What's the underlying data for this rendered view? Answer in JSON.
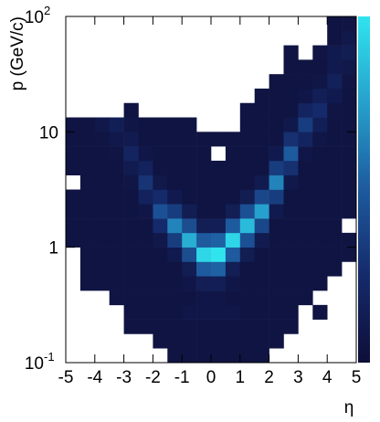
{
  "chart_data": {
    "type": "heatmap",
    "x_label": "η",
    "y_label": "p (GeV/c)",
    "log_y": true,
    "xlim": [
      -5,
      5
    ],
    "ylim": [
      0.1,
      100
    ],
    "xticks": [
      -5,
      -4,
      -3,
      -2,
      -1,
      0,
      1,
      2,
      3,
      4,
      5
    ],
    "yticks": [
      {
        "value": 0.1,
        "label": "10",
        "exponent": "-1"
      },
      1,
      10,
      {
        "value": 100,
        "label": "10",
        "exponent": "2"
      }
    ],
    "xbins": [
      -5,
      -4.5,
      -4,
      -3.5,
      -3,
      -2.5,
      -2,
      -1.5,
      -1,
      -0.5,
      0,
      0.5,
      1,
      1.5,
      2,
      2.5,
      3,
      3.5,
      4,
      4.5,
      5
    ],
    "ybins": [
      0.1,
      0.1334,
      0.1778,
      0.2371,
      0.3162,
      0.4217,
      0.5623,
      0.7499,
      1,
      1.334,
      1.778,
      2.371,
      3.162,
      4.217,
      5.623,
      7.499,
      10,
      13.34,
      17.78,
      23.71,
      31.62,
      42.17,
      56.23,
      74.99,
      100
    ],
    "zlim": [
      0,
      100
    ],
    "colors": [
      "#0e0e38",
      "#152a6a",
      "#1d5a9e",
      "#26a0cc",
      "#30e4ee"
    ],
    "z": [
      [
        null,
        null,
        null,
        null,
        null,
        null,
        null,
        5,
        5,
        5,
        5,
        5,
        5,
        5,
        null,
        null,
        null,
        null,
        null,
        null
      ],
      [
        null,
        null,
        null,
        null,
        null,
        null,
        5,
        5,
        5,
        5,
        5,
        5,
        5,
        5,
        5,
        null,
        null,
        null,
        null,
        null
      ],
      [
        null,
        null,
        null,
        null,
        5,
        5,
        5,
        5,
        5,
        5,
        5,
        5,
        5,
        5,
        5,
        5,
        null,
        null,
        null,
        null
      ],
      [
        null,
        null,
        null,
        null,
        5,
        5,
        5,
        5,
        8,
        8,
        8,
        8,
        5,
        5,
        5,
        5,
        null,
        5,
        null,
        null
      ],
      [
        null,
        null,
        null,
        5,
        5,
        5,
        5,
        5,
        5,
        8,
        8,
        5,
        5,
        5,
        5,
        5,
        5,
        null,
        null,
        null
      ],
      [
        null,
        5,
        5,
        5,
        5,
        5,
        5,
        5,
        8,
        14,
        15,
        8,
        5,
        5,
        5,
        5,
        5,
        5,
        null,
        null
      ],
      [
        null,
        5,
        5,
        5,
        5,
        5,
        5,
        5,
        13,
        50,
        53,
        14,
        5,
        5,
        5,
        5,
        5,
        5,
        5,
        null
      ],
      [
        null,
        5,
        5,
        5,
        5,
        5,
        5,
        11,
        43,
        95,
        100,
        50,
        13,
        5,
        5,
        5,
        5,
        5,
        5,
        5
      ],
      [
        5,
        5,
        5,
        5,
        5,
        5,
        9,
        35,
        80,
        50,
        53,
        95,
        45,
        12,
        5,
        5,
        5,
        5,
        5,
        5
      ],
      [
        5,
        5,
        5,
        5,
        5,
        5,
        25,
        65,
        43,
        14,
        15,
        50,
        85,
        40,
        5,
        5,
        5,
        5,
        5,
        null
      ],
      [
        5,
        5,
        5,
        5,
        5,
        8,
        45,
        35,
        13,
        5,
        5,
        14,
        45,
        75,
        11,
        5,
        5,
        5,
        5,
        5
      ],
      [
        5,
        5,
        5,
        5,
        5,
        18,
        25,
        11,
        5,
        5,
        5,
        5,
        13,
        40,
        35,
        5,
        5,
        5,
        5,
        5
      ],
      [
        null,
        5,
        5,
        5,
        7,
        30,
        9,
        5,
        5,
        5,
        5,
        5,
        5,
        12,
        65,
        10,
        5,
        5,
        5,
        5
      ],
      [
        5,
        5,
        5,
        5,
        12,
        18,
        5,
        5,
        5,
        5,
        5,
        5,
        5,
        5,
        35,
        28,
        5,
        5,
        5,
        5
      ],
      [
        5,
        5,
        5,
        6,
        20,
        8,
        5,
        5,
        5,
        5,
        null,
        5,
        5,
        5,
        11,
        50,
        8,
        5,
        5,
        5
      ],
      [
        5,
        5,
        6,
        10,
        12,
        5,
        5,
        5,
        5,
        5,
        5,
        5,
        5,
        5,
        5,
        28,
        20,
        7,
        5,
        5
      ],
      [
        5,
        5,
        9,
        15,
        7,
        5,
        5,
        5,
        5,
        null,
        null,
        null,
        5,
        5,
        5,
        10,
        35,
        15,
        5,
        5
      ],
      [
        null,
        null,
        null,
        null,
        5,
        null,
        null,
        null,
        null,
        null,
        null,
        null,
        5,
        5,
        5,
        5,
        20,
        25,
        6,
        5
      ],
      [
        null,
        null,
        null,
        null,
        null,
        null,
        null,
        null,
        null,
        null,
        null,
        null,
        null,
        5,
        5,
        5,
        8,
        15,
        11,
        5
      ],
      [
        null,
        null,
        null,
        null,
        null,
        null,
        null,
        null,
        null,
        null,
        null,
        null,
        null,
        null,
        5,
        5,
        5,
        7,
        17,
        6
      ],
      [
        null,
        null,
        null,
        null,
        null,
        null,
        null,
        null,
        null,
        null,
        null,
        null,
        null,
        null,
        null,
        5,
        5,
        5,
        11,
        9
      ],
      [
        null,
        null,
        null,
        null,
        null,
        null,
        null,
        null,
        null,
        null,
        null,
        null,
        null,
        null,
        null,
        5,
        null,
        6,
        11,
        13
      ],
      [
        null,
        null,
        null,
        null,
        null,
        null,
        null,
        null,
        null,
        null,
        null,
        null,
        null,
        null,
        null,
        null,
        null,
        null,
        5,
        9
      ],
      [
        null,
        null,
        null,
        null,
        null,
        null,
        null,
        null,
        null,
        null,
        null,
        null,
        null,
        null,
        null,
        null,
        null,
        null,
        5,
        6
      ]
    ]
  }
}
